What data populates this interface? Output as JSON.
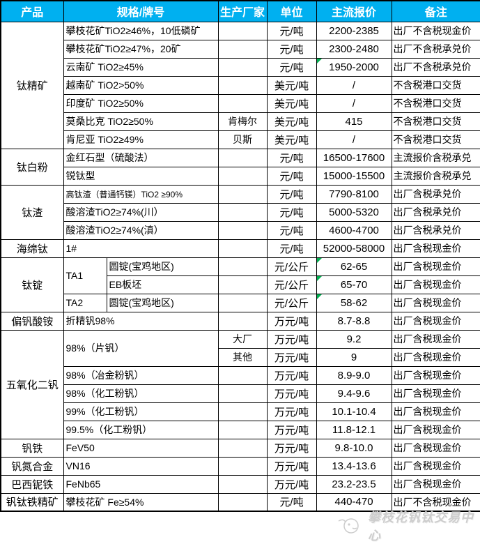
{
  "colors": {
    "header_bg": "#00b0f0",
    "header_text": "#ffffff",
    "grid": "#000000",
    "marker": "#00b050",
    "watermark": "#cdcdcd"
  },
  "header": {
    "columns": [
      "产品",
      "规格/牌号",
      "生产厂家",
      "单位",
      "主流报价",
      "备注"
    ]
  },
  "table": {
    "groups": [
      {
        "product": "钛精矿",
        "rows": [
          {
            "spec": "攀枝花矿TiO2≥46%，10低磷矿",
            "maker": "",
            "unit": "元/吨",
            "price": "2200-2385",
            "note": "出厂不含税现金价"
          },
          {
            "spec": "攀枝花矿TiO2≥47%，20矿",
            "maker": "",
            "unit": "元/吨",
            "price": "2300-2480",
            "note": "出厂不含税承兑价"
          },
          {
            "spec": "云南矿 TiO2≥45%",
            "maker": "",
            "unit": "元/吨",
            "price": "1950-2000",
            "note": "出厂不含税承兑价",
            "marker": true
          },
          {
            "spec": "越南矿 TiO2>50%",
            "maker": "",
            "unit": "美元/吨",
            "price": "/",
            "note": "不含税港口交货"
          },
          {
            "spec": "印度矿 TiO2≥50%",
            "maker": "",
            "unit": "美元/吨",
            "price": "/",
            "note": "不含税港口交货"
          },
          {
            "spec": "莫桑比克 TiO2≥50%",
            "maker": "肯梅尔",
            "unit": "美元/吨",
            "price": "415",
            "note": "不含税港口交货"
          },
          {
            "spec": "肯尼亚 TiO2≥49%",
            "maker": "贝斯",
            "unit": "美元/吨",
            "price": "/",
            "note": "不含税港口交货"
          }
        ]
      },
      {
        "product": "钛白粉",
        "rows": [
          {
            "spec": "金红石型（硫酸法）",
            "maker": "",
            "unit": "元/吨",
            "price": "16500-17600",
            "note": "主流报价含税承兑"
          },
          {
            "spec": "锐钛型",
            "maker": "",
            "unit": "元/吨",
            "price": "15000-15500",
            "note": "主流报价含税承兑"
          }
        ]
      },
      {
        "product": "钛渣",
        "rows": [
          {
            "spec": "高钛渣（普通钙镁）TiO2 ≥90%",
            "small": true,
            "maker": "",
            "unit": "元/吨",
            "price": "7790-8100",
            "note": "出厂含税承兑价"
          },
          {
            "spec": "酸溶渣TiO2≥74%(川）",
            "maker": "",
            "unit": "元/吨",
            "price": "5000-5320",
            "note": "出厂含税承兑价"
          },
          {
            "spec": "酸溶渣TiO2≥74%(滇）",
            "maker": "",
            "unit": "元/吨",
            "price": "4600-4700",
            "note": "出厂含税承兑价"
          }
        ]
      },
      {
        "product": "海绵钛",
        "rows": [
          {
            "spec": "1#",
            "maker": "",
            "unit": "元/吨",
            "price": "52000-58000",
            "note": "出厂含税现金价"
          }
        ]
      },
      {
        "product": "钛锭",
        "rows": [
          {
            "spec1": "TA1",
            "spec1_rowspan": 2,
            "spec2": "圆锭(宝鸡地区)",
            "maker": "",
            "unit": "元/公斤",
            "price": "62-65",
            "note": "出厂含税现金价",
            "marker": true
          },
          {
            "spec2": "EB板坯",
            "maker": "",
            "unit": "元/公斤",
            "price": "65-70",
            "note": "出厂含税现金价",
            "marker": true
          },
          {
            "spec1": "TA2",
            "spec1_rowspan": 1,
            "spec2": "圆锭(宝鸡地区)",
            "maker": "",
            "unit": "元/公斤",
            "price": "58-62",
            "note": "出厂含税现金价",
            "marker": true
          }
        ]
      },
      {
        "product": "偏钒酸铵",
        "rows": [
          {
            "spec": "折精钒98%",
            "maker": "",
            "unit": "万元/吨",
            "price": "8.7-8.8",
            "note": "出厂含税现金价"
          }
        ]
      },
      {
        "product": "五氧化二钒",
        "rows": [
          {
            "spec": "98%（片钒）",
            "spec_rowspan": 2,
            "maker": "大厂",
            "unit": "万元/吨",
            "price": "9.2",
            "note": "出厂含税现金价"
          },
          {
            "maker": "其他",
            "unit": "万元/吨",
            "price": "9",
            "note": "出厂含税现金价"
          },
          {
            "spec": "98%（冶金粉钒）",
            "maker": "",
            "unit": "万元/吨",
            "price": "8.9-9.0",
            "note": "出厂含税现金价"
          },
          {
            "spec": "98%（化工粉钒）",
            "maker": "",
            "unit": "万元/吨",
            "price": "9.4-9.6",
            "note": "出厂含税现金价"
          },
          {
            "spec": "99%（化工粉钒）",
            "maker": "",
            "unit": "万元/吨",
            "price": "10.1-10.4",
            "note": "出厂含税现金价"
          },
          {
            "spec": "99.5%（化工粉钒）",
            "maker": "",
            "unit": "万元/吨",
            "price": "11.8-12.1",
            "note": "出厂含税现金价"
          }
        ]
      },
      {
        "product": "钒铁",
        "rows": [
          {
            "spec": "FeV50",
            "maker": "",
            "unit": "万元/吨",
            "price": "9.8-10.0",
            "note": "出厂含税现金价"
          }
        ]
      },
      {
        "product": "钒氮合金",
        "rows": [
          {
            "spec": "VN16",
            "maker": "",
            "unit": "万元/吨",
            "price": "13.4-13.6",
            "note": "出厂含税现金价"
          }
        ]
      },
      {
        "product": "巴西铌铁",
        "rows": [
          {
            "spec": "FeNb65",
            "maker": "",
            "unit": "万元/吨",
            "price": "23.2-23.5",
            "note": "出厂含税现金价"
          }
        ]
      },
      {
        "product": "钒钛铁精矿",
        "rows": [
          {
            "spec": "攀枝花矿 Fe≥54%",
            "maker": "",
            "unit": "元/吨",
            "price": "440-470",
            "note": "出厂不含税现金价"
          }
        ]
      }
    ]
  },
  "watermark": {
    "text": "攀枝花钒钛交易中心"
  }
}
